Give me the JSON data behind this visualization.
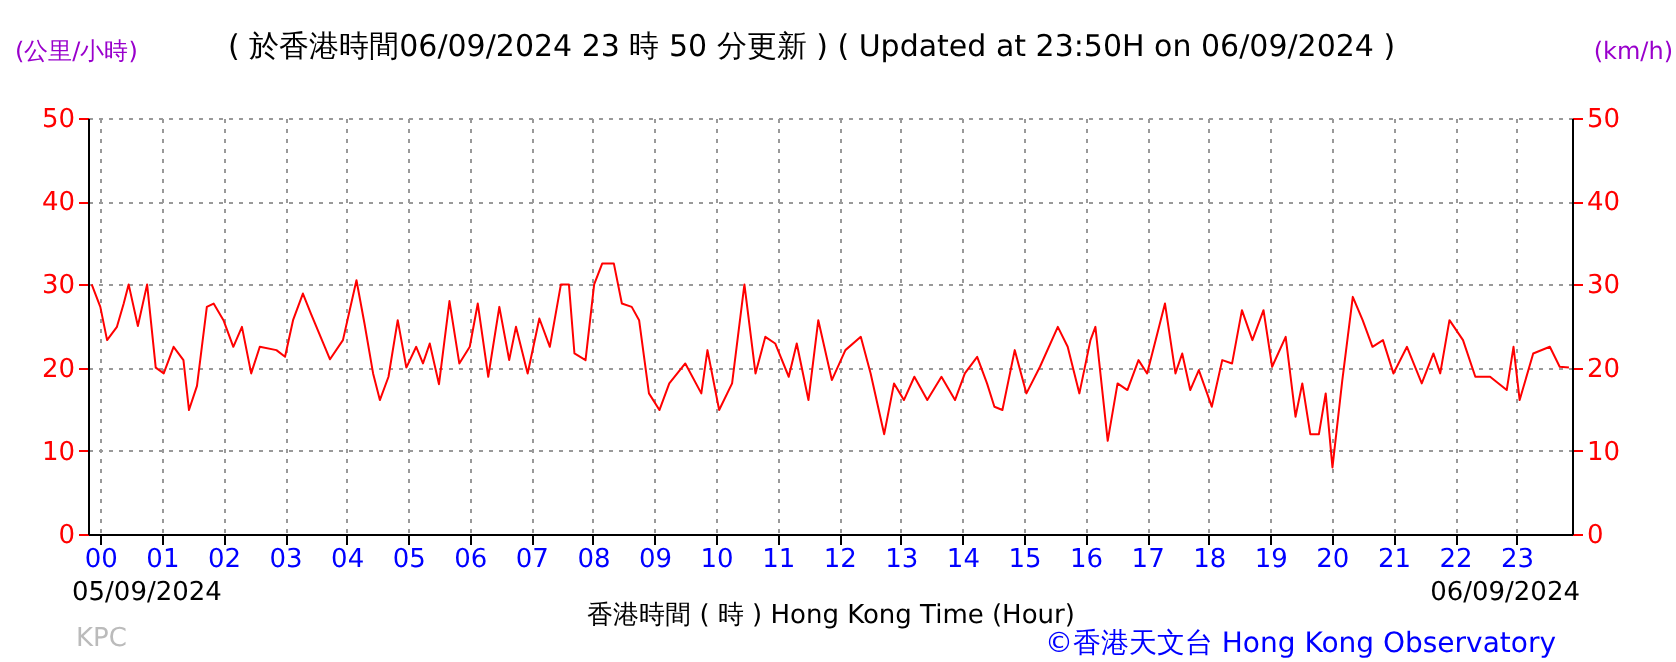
{
  "chart_data": {
    "type": "line",
    "title": "( 於香港時間06/09/2024 23 時 50 分更新 ) ( Updated at 23:50H on 06/09/2024 )",
    "xlabel": "香港時間 ( 時 )  Hong Kong Time (Hour)",
    "ylabel": "(公里/小時)",
    "y2label": "(km/h)",
    "annotations": [
      "05/09/2024",
      "06/09/2024",
      "KPC",
      "©香港天文台 Hong Kong Observatory"
    ],
    "xlim": [
      -0.2,
      23.9
    ],
    "xticks": [
      {
        "value": 0,
        "label": "00"
      },
      {
        "value": 1,
        "label": "01"
      },
      {
        "value": 2,
        "label": "02"
      },
      {
        "value": 3,
        "label": "03"
      },
      {
        "value": 4,
        "label": "04"
      },
      {
        "value": 5,
        "label": "05"
      },
      {
        "value": 6,
        "label": "06"
      },
      {
        "value": 7,
        "label": "07"
      },
      {
        "value": 8,
        "label": "08"
      },
      {
        "value": 9,
        "label": "09"
      },
      {
        "value": 10,
        "label": "10"
      },
      {
        "value": 11,
        "label": "11"
      },
      {
        "value": 12,
        "label": "12"
      },
      {
        "value": 13,
        "label": "13"
      },
      {
        "value": 14,
        "label": "14"
      },
      {
        "value": 15,
        "label": "15"
      },
      {
        "value": 16,
        "label": "16"
      },
      {
        "value": 17,
        "label": "17"
      },
      {
        "value": 18,
        "label": "18"
      },
      {
        "value": 19,
        "label": "19"
      },
      {
        "value": 20,
        "label": "20"
      },
      {
        "value": 21,
        "label": "21"
      },
      {
        "value": 22,
        "label": "22"
      },
      {
        "value": 23,
        "label": "23"
      }
    ],
    "ylim": [
      0,
      50
    ],
    "yticks": [
      0,
      10,
      20,
      30,
      40,
      50
    ],
    "y2lim": [
      0,
      50
    ],
    "y2ticks": [
      0,
      10,
      20,
      30,
      40,
      50
    ],
    "grid": true,
    "series": [
      {
        "color": "#ff0000",
        "x": [
          -0.14,
          0,
          0.11,
          0.27,
          0.38,
          0.46,
          0.61,
          0.76,
          0.9,
          1.03,
          1.19,
          1.35,
          1.44,
          1.57,
          1.73,
          1.84,
          2.0,
          2.16,
          2.3,
          2.45,
          2.59,
          2.86,
          3.0,
          3.13,
          3.29,
          3.42,
          3.73,
          3.94,
          4.16,
          4.29,
          4.43,
          4.54,
          4.68,
          4.83,
          4.97,
          5.13,
          5.24,
          5.35,
          5.5,
          5.67,
          5.83,
          6.0,
          6.13,
          6.3,
          6.48,
          6.64,
          6.75,
          6.94,
          7.13,
          7.3,
          7.48,
          7.61,
          7.7,
          7.88,
          8.02,
          8.15,
          8.34,
          8.47,
          8.63,
          8.75,
          8.91,
          9.08,
          9.24,
          9.5,
          9.76,
          9.86,
          10.05,
          10.26,
          10.46,
          10.64,
          10.8,
          10.96,
          11.18,
          11.31,
          11.5,
          11.66,
          11.88,
          12.1,
          12.35,
          12.51,
          12.73,
          12.89,
          13.05,
          13.22,
          13.43,
          13.66,
          13.88,
          14.04,
          14.24,
          14.4,
          14.52,
          14.65,
          14.85,
          15.04,
          15.26,
          15.55,
          15.71,
          15.9,
          16.08,
          16.16,
          16.36,
          16.52,
          16.68,
          16.86,
          17.0,
          17.29,
          17.46,
          17.57,
          17.7,
          17.84,
          18.05,
          18.22,
          18.38,
          18.54,
          18.71,
          18.89,
          19.03,
          19.25,
          19.41,
          19.52,
          19.65,
          19.79,
          19.9,
          20.01,
          20.17,
          20.34,
          20.5,
          20.66,
          20.83,
          21.0,
          21.22,
          21.46,
          21.65,
          21.76,
          21.91,
          22.13,
          22.33,
          22.57,
          22.84,
          22.95,
          23.05,
          23.27,
          23.54,
          23.7,
          23.85
        ],
        "values": [
          30,
          27.3,
          23.3,
          24.9,
          27.7,
          30,
          25,
          30,
          20,
          19.3,
          22.5,
          20.9,
          14.9,
          17.8,
          27.3,
          27.7,
          25.7,
          22.5,
          24.9,
          19.3,
          22.5,
          22.1,
          21.3,
          25.7,
          28.9,
          26.5,
          21,
          23.3,
          30.5,
          25.3,
          19.3,
          16.1,
          18.9,
          25.7,
          20,
          22.5,
          20.5,
          22.9,
          18,
          28,
          20.5,
          22.5,
          27.7,
          18.9,
          27.3,
          20.9,
          24.9,
          19.3,
          25.9,
          22.5,
          30,
          30,
          21.7,
          20.9,
          30,
          32.5,
          32.5,
          27.7,
          27.3,
          25.7,
          16.9,
          14.9,
          18.1,
          20.5,
          16.9,
          22.1,
          14.9,
          18.1,
          30,
          19.3,
          23.7,
          22.9,
          18.9,
          22.9,
          16.1,
          25.7,
          18.5,
          22.1,
          23.7,
          19.3,
          12,
          18.1,
          16.1,
          18.9,
          16.1,
          18.9,
          16.1,
          19.3,
          21.3,
          18.1,
          15.3,
          14.9,
          22.1,
          16.9,
          20.1,
          24.9,
          22.5,
          16.9,
          23.3,
          24.9,
          11.2,
          18.1,
          17.3,
          20.9,
          19.3,
          27.7,
          19.3,
          21.7,
          17.3,
          19.7,
          15.3,
          20.9,
          20.5,
          26.9,
          23.3,
          26.9,
          20.1,
          23.7,
          14.1,
          18.1,
          12,
          12,
          16.9,
          8,
          18.5,
          28.5,
          25.7,
          22.5,
          23.3,
          19.3,
          22.5,
          18.1,
          21.7,
          19.3,
          25.7,
          23.3,
          18.9,
          18.9,
          17.3,
          22.5,
          16.1,
          21.7,
          22.5,
          20.1,
          20
        ]
      }
    ]
  }
}
